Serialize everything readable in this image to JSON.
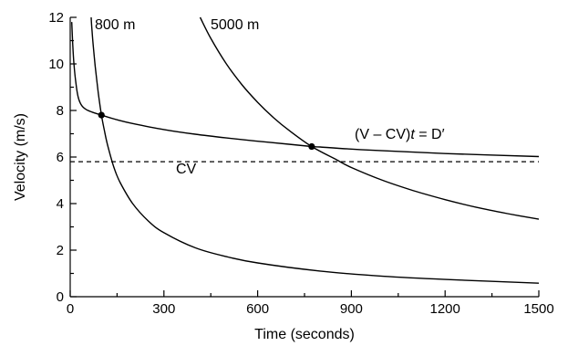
{
  "chart_data": {
    "type": "line",
    "xlabel": "Time (seconds)",
    "ylabel": "Velocity (m/s)",
    "xlim": [
      0,
      1500
    ],
    "ylim": [
      0,
      12
    ],
    "x_ticks": [
      0,
      300,
      600,
      900,
      1200,
      1500
    ],
    "x_minor_ticks": [
      150,
      450,
      750,
      1050,
      1350
    ],
    "y_ticks": [
      0,
      2,
      4,
      6,
      8,
      10,
      12
    ],
    "y_minor_ticks": [
      1,
      3,
      5,
      7,
      9,
      11
    ],
    "grid": false,
    "critical_velocity": {
      "label": "CV",
      "value": 5.8
    },
    "series": [
      {
        "key": "hyperbola",
        "name": "(V – CV)t = D′",
        "label_parts": [
          "(V – CV)",
          "t",
          " = D′"
        ],
        "x": [
          5,
          8,
          12,
          18,
          25,
          35,
          50,
          70,
          100,
          150,
          200,
          300,
          400,
          500,
          600,
          700,
          773,
          800,
          900,
          1000,
          1200,
          1500
        ],
        "y": [
          11.8,
          10.9,
          10.0,
          9.2,
          8.6,
          8.25,
          8.05,
          7.93,
          7.8,
          7.6,
          7.44,
          7.18,
          6.98,
          6.82,
          6.68,
          6.55,
          6.45,
          6.43,
          6.34,
          6.27,
          6.15,
          6.02
        ]
      },
      {
        "key": "run_800",
        "name": "800 m",
        "x": [
          67,
          70,
          75,
          80,
          90,
          100,
          110,
          120,
          140,
          160,
          200,
          250,
          300,
          400,
          500,
          600,
          800,
          1000,
          1200,
          1500
        ],
        "y": [
          12.0,
          11.4,
          10.6,
          9.9,
          8.75,
          7.8,
          7.1,
          6.5,
          5.55,
          4.9,
          4.0,
          3.25,
          2.75,
          2.1,
          1.72,
          1.45,
          1.1,
          0.88,
          0.74,
          0.58
        ]
      },
      {
        "key": "run_5000",
        "name": "5000 m",
        "x": [
          416,
          450,
          500,
          550,
          600,
          650,
          700,
          773,
          850,
          900,
          1000,
          1100,
          1200,
          1300,
          1400,
          1500
        ],
        "y": [
          12.0,
          11.1,
          10.0,
          9.1,
          8.35,
          7.7,
          7.15,
          6.45,
          5.9,
          5.55,
          5.0,
          4.55,
          4.17,
          3.84,
          3.57,
          3.33
        ]
      }
    ],
    "points": [
      {
        "x": 100,
        "y": 7.8
      },
      {
        "x": 773,
        "y": 6.45
      }
    ]
  }
}
